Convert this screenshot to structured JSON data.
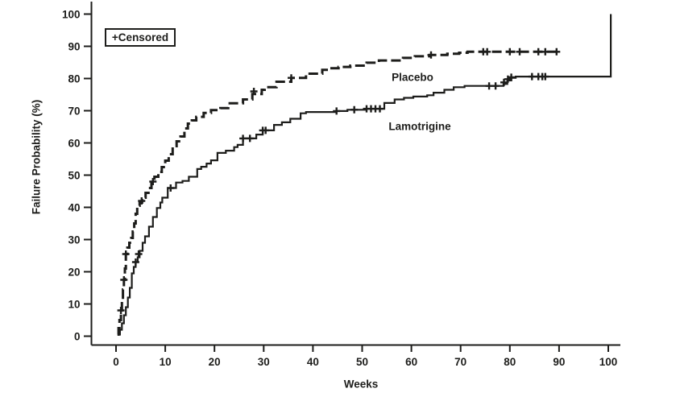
{
  "figure": {
    "background": "#ffffff",
    "ink": "#1d1d1b"
  },
  "legend": {
    "label": "+Censored"
  },
  "axes": {
    "x": {
      "title": "Weeks",
      "min": 0,
      "max": 100,
      "ticks": [
        0,
        10,
        20,
        30,
        40,
        50,
        60,
        70,
        80,
        90,
        100
      ]
    },
    "y": {
      "title": "Failure Probability (%)",
      "min": 0,
      "max": 100,
      "ticks": [
        0,
        10,
        20,
        30,
        40,
        50,
        60,
        70,
        80,
        90,
        100
      ]
    }
  },
  "chart_data": {
    "type": "line",
    "subtype": "kaplan-meier-failure-step",
    "title": "",
    "xlabel": "Weeks",
    "ylabel": "Failure Probability (%)",
    "xlim": [
      0,
      100
    ],
    "ylim": [
      0,
      100
    ],
    "grid": false,
    "legend_note": "+Censored",
    "annotations": [
      {
        "text": "Placebo",
        "week": 60,
        "pct": 80.4
      },
      {
        "text": "Lamotrigine",
        "week": 61.5,
        "pct": 65.2
      }
    ],
    "series": [
      {
        "name": "Placebo",
        "line_style": "dashed",
        "color": "#1d1d1b",
        "points": [
          [
            0.3,
            0.5
          ],
          [
            0.5,
            2.5
          ],
          [
            0.7,
            5
          ],
          [
            1.0,
            8
          ],
          [
            1.2,
            11
          ],
          [
            1.4,
            14.5
          ],
          [
            1.6,
            17.5
          ],
          [
            1.8,
            21
          ],
          [
            2.0,
            25.5
          ],
          [
            2.3,
            27.5
          ],
          [
            2.7,
            29
          ],
          [
            3.1,
            30.5
          ],
          [
            3.4,
            32.5
          ],
          [
            3.7,
            35
          ],
          [
            4.0,
            38
          ],
          [
            4.3,
            40.5
          ],
          [
            4.8,
            41.5
          ],
          [
            5.3,
            43
          ],
          [
            6.0,
            44.5
          ],
          [
            6.6,
            46
          ],
          [
            7.2,
            47.5
          ],
          [
            7.8,
            49.5
          ],
          [
            8.6,
            51
          ],
          [
            9.3,
            52.5
          ],
          [
            10.0,
            54.5
          ],
          [
            10.7,
            56.5
          ],
          [
            11.5,
            59
          ],
          [
            12.3,
            60.5
          ],
          [
            13.1,
            62
          ],
          [
            13.9,
            64.5
          ],
          [
            14.6,
            66
          ],
          [
            15.4,
            67
          ],
          [
            16.3,
            68.1
          ],
          [
            17.8,
            69.3
          ],
          [
            19.3,
            70.2
          ],
          [
            21.2,
            70.8
          ],
          [
            22.8,
            72.3
          ],
          [
            25.8,
            73.5
          ],
          [
            27.7,
            75.2
          ],
          [
            29.6,
            76.5
          ],
          [
            30.2,
            77.3
          ],
          [
            32.6,
            79
          ],
          [
            35.6,
            80.2
          ],
          [
            38.6,
            81.5
          ],
          [
            41.9,
            82.7
          ],
          [
            43.5,
            83.2
          ],
          [
            45.2,
            83.6
          ],
          [
            47.6,
            84
          ],
          [
            50.9,
            84.9
          ],
          [
            53.4,
            85.6
          ],
          [
            58.3,
            86.4
          ],
          [
            60.7,
            86.9
          ],
          [
            63.7,
            87.3
          ],
          [
            67.3,
            87.7
          ],
          [
            69.7,
            88
          ],
          [
            71.4,
            88.3
          ],
          [
            90,
            88.3
          ]
        ],
        "censored": [
          [
            1.0,
            8
          ],
          [
            1.6,
            17.5
          ],
          [
            2.0,
            25.5
          ],
          [
            5.2,
            42
          ],
          [
            7.5,
            48
          ],
          [
            28,
            76
          ],
          [
            35.6,
            80.2
          ],
          [
            64,
            87.3
          ],
          [
            74.6,
            88.3
          ],
          [
            75.4,
            88.3
          ],
          [
            80,
            88.3
          ],
          [
            82,
            88.3
          ],
          [
            85.8,
            88.3
          ],
          [
            87.2,
            88.3
          ],
          [
            89.5,
            88.3
          ]
        ]
      },
      {
        "name": "Lamotrigine",
        "line_style": "solid",
        "color": "#1d1d1b",
        "points": [
          [
            0.5,
            0.5
          ],
          [
            0.8,
            2
          ],
          [
            1.2,
            4
          ],
          [
            1.6,
            6.5
          ],
          [
            2.0,
            9
          ],
          [
            2.4,
            12
          ],
          [
            2.8,
            15
          ],
          [
            3.2,
            19.5
          ],
          [
            3.6,
            21.5
          ],
          [
            4.0,
            23
          ],
          [
            4.4,
            24.5
          ],
          [
            4.8,
            26.5
          ],
          [
            5.4,
            29
          ],
          [
            5.9,
            31
          ],
          [
            6.7,
            34
          ],
          [
            7.5,
            37
          ],
          [
            8.3,
            39.8
          ],
          [
            9.0,
            41.5
          ],
          [
            9.4,
            43
          ],
          [
            10.5,
            46
          ],
          [
            12.2,
            47.7
          ],
          [
            13.5,
            48.2
          ],
          [
            14.8,
            49.5
          ],
          [
            16.5,
            51.9
          ],
          [
            17.3,
            52.6
          ],
          [
            18.4,
            53.6
          ],
          [
            19.3,
            54.6
          ],
          [
            20.6,
            56.9
          ],
          [
            22.3,
            57.6
          ],
          [
            24.0,
            58.7
          ],
          [
            24.7,
            59.4
          ],
          [
            25.8,
            61.4
          ],
          [
            28.5,
            62.6
          ],
          [
            29.8,
            63.9
          ],
          [
            32.1,
            65.6
          ],
          [
            33.7,
            66.4
          ],
          [
            35.4,
            67.5
          ],
          [
            37.5,
            69.2
          ],
          [
            38.6,
            69.6
          ],
          [
            44.8,
            69.9
          ],
          [
            47.0,
            70.3
          ],
          [
            50.6,
            70.6
          ],
          [
            54.5,
            72.4
          ],
          [
            56.6,
            73.5
          ],
          [
            58.5,
            74.0
          ],
          [
            60.4,
            74.4
          ],
          [
            63.2,
            74.8
          ],
          [
            64.5,
            75.6
          ],
          [
            66.7,
            76.5
          ],
          [
            68.6,
            77.3
          ],
          [
            70.8,
            77.7
          ],
          [
            78.7,
            78.3
          ],
          [
            79.5,
            79.4
          ],
          [
            80.3,
            80.2
          ],
          [
            81.2,
            80.6
          ],
          [
            100.5,
            80.6
          ],
          [
            100.5,
            100
          ]
        ],
        "censored": [
          [
            4.0,
            23
          ],
          [
            4.6,
            25.5
          ],
          [
            11.1,
            46
          ],
          [
            25.8,
            61.4
          ],
          [
            27.2,
            61.4
          ],
          [
            29.8,
            63.9
          ],
          [
            30.4,
            63.9
          ],
          [
            44.8,
            69.9
          ],
          [
            48.4,
            70.3
          ],
          [
            50.9,
            70.6
          ],
          [
            51.8,
            70.6
          ],
          [
            52.7,
            70.6
          ],
          [
            53.6,
            70.6
          ],
          [
            75.8,
            77.7
          ],
          [
            77.1,
            77.7
          ],
          [
            78.8,
            78.8
          ],
          [
            79.6,
            79.8
          ],
          [
            80.3,
            80.4
          ],
          [
            84.5,
            80.6
          ],
          [
            85.8,
            80.6
          ],
          [
            86.6,
            80.6
          ],
          [
            87.2,
            80.6
          ]
        ]
      }
    ]
  }
}
